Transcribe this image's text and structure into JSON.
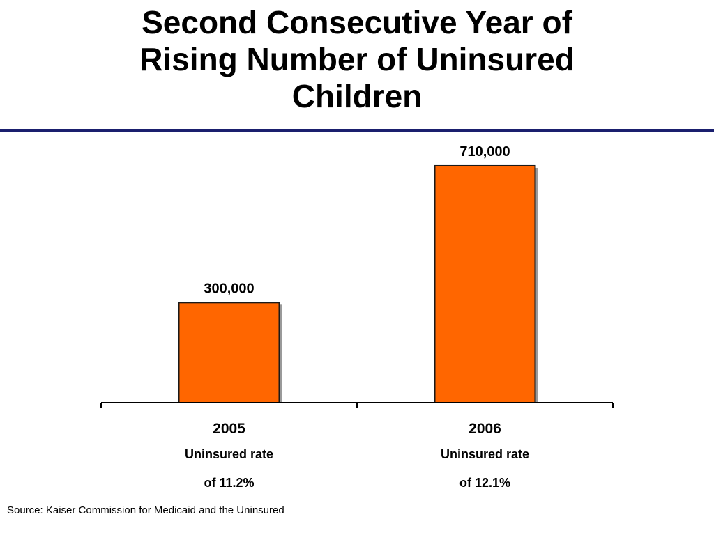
{
  "slide": {
    "title_lines": [
      "Second Consecutive Year of",
      "Rising Number of Uninsured",
      "Children"
    ],
    "source": "Source: Kaiser Commission for Medicaid and the Uninsured"
  },
  "colors": {
    "bar_fill": "#ff6600",
    "bar_outline": "#1a1a1a",
    "bar_shadow": "#9a9a9a",
    "title_rule": "#1a1f6e"
  },
  "chart_data": {
    "type": "bar",
    "categories": [
      "2005",
      "2006"
    ],
    "category_sublabels": [
      [
        "Uninsured rate",
        "of 11.2%"
      ],
      [
        "Uninsured rate",
        "of 12.1%"
      ]
    ],
    "values": [
      300000,
      710000
    ],
    "data_labels": [
      "300,000",
      "710,000"
    ],
    "ylim": [
      0,
      760000
    ],
    "grid": false,
    "legend": "none"
  }
}
